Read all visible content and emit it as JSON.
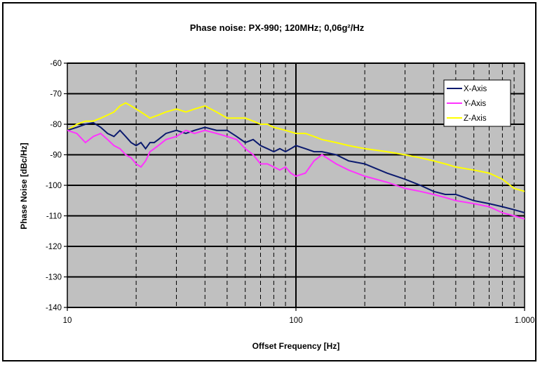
{
  "chart_data": {
    "type": "line",
    "title": "Phase noise: PX-990;        120MHz;   0,06g²/Hz",
    "xlabel": "Offset Frequency [Hz]",
    "ylabel": "Phase Noise [dBc/Hz]",
    "xscale": "log",
    "xlim": [
      10,
      1000
    ],
    "ylim": [
      -140,
      -60
    ],
    "x_tick_labels": [
      "10",
      "100",
      "1.000"
    ],
    "y_ticks": [
      -60,
      -70,
      -80,
      -90,
      -100,
      -110,
      -120,
      -130,
      -140
    ],
    "grid": "major solid horizontal, minor dashed vertical",
    "plot_background": "#c0c0c0",
    "legend_position": "top-right",
    "series": [
      {
        "name": "X-Axis",
        "color": "#0b1a6e",
        "points": [
          [
            10,
            -82
          ],
          [
            11,
            -81
          ],
          [
            12,
            -80
          ],
          [
            13,
            -79.5
          ],
          [
            14,
            -81
          ],
          [
            15,
            -83
          ],
          [
            16,
            -84
          ],
          [
            17,
            -82
          ],
          [
            18,
            -84
          ],
          [
            19,
            -86
          ],
          [
            20,
            -87
          ],
          [
            21,
            -86
          ],
          [
            22,
            -88
          ],
          [
            23,
            -86
          ],
          [
            24,
            -86
          ],
          [
            25,
            -85
          ],
          [
            27,
            -83
          ],
          [
            30,
            -82
          ],
          [
            33,
            -83
          ],
          [
            36,
            -82
          ],
          [
            40,
            -81
          ],
          [
            45,
            -82
          ],
          [
            50,
            -82
          ],
          [
            55,
            -84
          ],
          [
            60,
            -86
          ],
          [
            65,
            -85
          ],
          [
            70,
            -87
          ],
          [
            75,
            -88
          ],
          [
            80,
            -89
          ],
          [
            85,
            -88
          ],
          [
            90,
            -89
          ],
          [
            95,
            -88
          ],
          [
            100,
            -87
          ],
          [
            110,
            -88
          ],
          [
            120,
            -89
          ],
          [
            130,
            -89
          ],
          [
            150,
            -90
          ],
          [
            170,
            -92
          ],
          [
            200,
            -93
          ],
          [
            250,
            -96
          ],
          [
            300,
            -98
          ],
          [
            350,
            -100
          ],
          [
            400,
            -102
          ],
          [
            450,
            -103
          ],
          [
            500,
            -103
          ],
          [
            600,
            -105
          ],
          [
            700,
            -106
          ],
          [
            800,
            -107
          ],
          [
            900,
            -108
          ],
          [
            1000,
            -109
          ]
        ]
      },
      {
        "name": "Y-Axis",
        "color": "#ff33ff",
        "points": [
          [
            10,
            -82
          ],
          [
            11,
            -83
          ],
          [
            12,
            -86
          ],
          [
            13,
            -84
          ],
          [
            14,
            -83
          ],
          [
            15,
            -85
          ],
          [
            16,
            -87
          ],
          [
            17,
            -88
          ],
          [
            18,
            -90
          ],
          [
            19,
            -91
          ],
          [
            20,
            -93
          ],
          [
            21,
            -94
          ],
          [
            22,
            -92
          ],
          [
            23,
            -89
          ],
          [
            24,
            -88
          ],
          [
            25,
            -87
          ],
          [
            27,
            -85
          ],
          [
            30,
            -84
          ],
          [
            33,
            -82
          ],
          [
            36,
            -83
          ],
          [
            40,
            -82
          ],
          [
            45,
            -83
          ],
          [
            50,
            -84
          ],
          [
            55,
            -85
          ],
          [
            60,
            -88
          ],
          [
            65,
            -90
          ],
          [
            70,
            -93
          ],
          [
            75,
            -93
          ],
          [
            80,
            -94
          ],
          [
            85,
            -95
          ],
          [
            90,
            -94
          ],
          [
            95,
            -96
          ],
          [
            100,
            -97
          ],
          [
            110,
            -96
          ],
          [
            120,
            -92
          ],
          [
            130,
            -90
          ],
          [
            150,
            -93
          ],
          [
            170,
            -95
          ],
          [
            200,
            -97
          ],
          [
            250,
            -99
          ],
          [
            300,
            -101
          ],
          [
            350,
            -102
          ],
          [
            400,
            -103
          ],
          [
            450,
            -104
          ],
          [
            500,
            -105
          ],
          [
            600,
            -106
          ],
          [
            700,
            -107
          ],
          [
            800,
            -109
          ],
          [
            900,
            -110
          ],
          [
            1000,
            -111
          ]
        ]
      },
      {
        "name": "Z-Axis",
        "color": "#ffff00",
        "points": [
          [
            10,
            -82
          ],
          [
            11,
            -80
          ],
          [
            12,
            -79
          ],
          [
            13,
            -79
          ],
          [
            14,
            -78
          ],
          [
            15,
            -77
          ],
          [
            16,
            -76
          ],
          [
            17,
            -74
          ],
          [
            18,
            -73
          ],
          [
            19,
            -74
          ],
          [
            20,
            -75
          ],
          [
            21,
            -76
          ],
          [
            22,
            -77
          ],
          [
            23,
            -78
          ],
          [
            25,
            -77
          ],
          [
            27,
            -76
          ],
          [
            30,
            -75
          ],
          [
            33,
            -76
          ],
          [
            36,
            -75
          ],
          [
            40,
            -74
          ],
          [
            45,
            -76
          ],
          [
            50,
            -78
          ],
          [
            55,
            -78
          ],
          [
            60,
            -78
          ],
          [
            65,
            -79
          ],
          [
            70,
            -80
          ],
          [
            75,
            -80
          ],
          [
            80,
            -81
          ],
          [
            90,
            -82
          ],
          [
            100,
            -83
          ],
          [
            110,
            -83
          ],
          [
            120,
            -84
          ],
          [
            130,
            -85
          ],
          [
            150,
            -86
          ],
          [
            170,
            -87
          ],
          [
            200,
            -88
          ],
          [
            250,
            -89
          ],
          [
            300,
            -90
          ],
          [
            350,
            -91
          ],
          [
            400,
            -92
          ],
          [
            450,
            -93
          ],
          [
            500,
            -94
          ],
          [
            600,
            -95
          ],
          [
            700,
            -96
          ],
          [
            800,
            -98
          ],
          [
            900,
            -101
          ],
          [
            1000,
            -102
          ]
        ]
      }
    ]
  }
}
